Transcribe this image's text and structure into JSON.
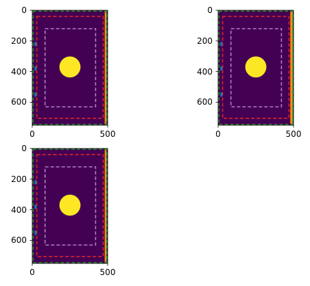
{
  "chart_data": [
    {
      "type": "heatmap",
      "panel": "top-left",
      "x_range": [
        0,
        500
      ],
      "y_range": [
        750,
        0
      ],
      "x_ticks": [
        0,
        500
      ],
      "y_ticks": [
        0,
        200,
        400,
        600
      ],
      "x_tick_labels": [
        "0",
        "500"
      ],
      "y_tick_labels": [
        "0",
        "200",
        "400",
        "600"
      ],
      "background": "#440154",
      "circle": {
        "cx": 250,
        "cy": 370,
        "r": 70,
        "color": "#fde725"
      },
      "rectangles": [
        {
          "name": "outer-green",
          "x0": 5,
          "y0": 5,
          "x1": 495,
          "y1": 745,
          "color": "#2ca02c"
        },
        {
          "name": "middle-red",
          "x0": 30,
          "y0": 40,
          "x1": 470,
          "y1": 705,
          "color": "#d62728"
        },
        {
          "name": "inner-pink",
          "x0": 85,
          "y0": 120,
          "x1": 420,
          "y1": 630,
          "color": "#b07cc6"
        }
      ],
      "side_bar": {
        "x0": 480,
        "x1": 492,
        "color": "#ff7f0e",
        "inner_color": "#bcbd22"
      },
      "left_markers": {
        "x": 22,
        "color": "#1f77b4",
        "y_values": [
          220,
          380,
          550
        ]
      }
    },
    {
      "type": "heatmap",
      "panel": "top-right",
      "x_range": [
        0,
        500
      ],
      "y_range": [
        750,
        0
      ],
      "x_ticks": [
        0,
        500
      ],
      "y_ticks": [
        0,
        200,
        400,
        600
      ],
      "x_tick_labels": [
        "0",
        "500"
      ],
      "y_tick_labels": [
        "0",
        "200",
        "400",
        "600"
      ],
      "background": "#440154",
      "circle": {
        "cx": 250,
        "cy": 370,
        "r": 70,
        "color": "#fde725"
      },
      "rectangles": [
        {
          "name": "outer-green",
          "x0": 5,
          "y0": 5,
          "x1": 495,
          "y1": 745,
          "color": "#2ca02c"
        },
        {
          "name": "middle-red",
          "x0": 30,
          "y0": 40,
          "x1": 470,
          "y1": 705,
          "color": "#d62728"
        },
        {
          "name": "inner-pink",
          "x0": 85,
          "y0": 120,
          "x1": 420,
          "y1": 630,
          "color": "#b07cc6"
        }
      ],
      "side_bar": {
        "x0": 478,
        "x1": 495,
        "color": "#ff7f0e",
        "inner_color": "#bcbd22"
      },
      "left_markers": {
        "x": 22,
        "color": "#1f77b4",
        "y_values": [
          220,
          380,
          550
        ]
      }
    },
    {
      "type": "heatmap",
      "panel": "bottom-left",
      "x_range": [
        0,
        500
      ],
      "y_range": [
        750,
        0
      ],
      "x_ticks": [
        0,
        500
      ],
      "y_ticks": [
        0,
        200,
        400,
        600
      ],
      "x_tick_labels": [
        "0",
        "500"
      ],
      "y_tick_labels": [
        "0",
        "200",
        "400",
        "600"
      ],
      "background": "#440154",
      "circle": {
        "cx": 250,
        "cy": 370,
        "r": 70,
        "color": "#fde725"
      },
      "rectangles": [
        {
          "name": "outer-green",
          "x0": 5,
          "y0": 5,
          "x1": 495,
          "y1": 745,
          "color": "#2ca02c"
        },
        {
          "name": "middle-red",
          "x0": 30,
          "y0": 40,
          "x1": 470,
          "y1": 705,
          "color": "#d62728"
        },
        {
          "name": "inner-pink",
          "x0": 85,
          "y0": 120,
          "x1": 420,
          "y1": 630,
          "color": "#b07cc6"
        }
      ],
      "side_bar": {
        "x0": 480,
        "x1": 492,
        "color": "#ff7f0e",
        "inner_color": "#bcbd22"
      },
      "left_markers": {
        "x": 22,
        "color": "#1f77b4",
        "y_values": [
          220,
          380,
          550
        ]
      }
    }
  ]
}
